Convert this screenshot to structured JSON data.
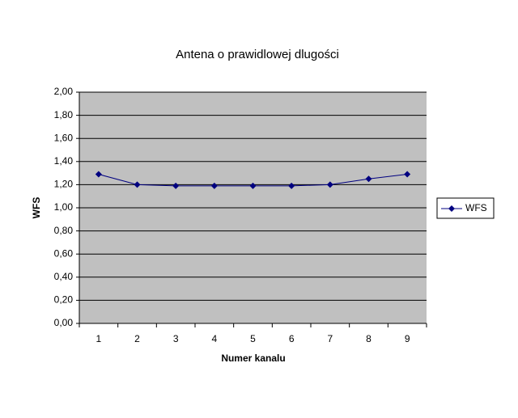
{
  "chart_data": {
    "type": "line",
    "title": "Antena o prawidlowej dlugości",
    "x_label": "Numer kanalu",
    "y_label": "WFS",
    "categories": [
      "1",
      "2",
      "3",
      "4",
      "5",
      "6",
      "7",
      "8",
      "9"
    ],
    "series": [
      {
        "name": "WFS",
        "color": "#000080",
        "values": [
          1.29,
          1.2,
          1.19,
          1.19,
          1.19,
          1.19,
          1.2,
          1.25,
          1.29
        ]
      }
    ],
    "ylim": [
      0,
      2
    ],
    "yticks": [
      {
        "value": 0,
        "label": "0,00"
      },
      {
        "value": 0.2,
        "label": "0,20"
      },
      {
        "value": 0.4,
        "label": "0,40"
      },
      {
        "value": 0.6,
        "label": "0,60"
      },
      {
        "value": 0.8,
        "label": "0,80"
      },
      {
        "value": 1,
        "label": "1,00"
      },
      {
        "value": 1.2,
        "label": "1,20"
      },
      {
        "value": 1.4,
        "label": "1,40"
      },
      {
        "value": 1.6,
        "label": "1,60"
      },
      {
        "value": 1.8,
        "label": "1,80"
      },
      {
        "value": 2,
        "label": "2,00"
      }
    ],
    "grid": true,
    "legend": "right"
  }
}
